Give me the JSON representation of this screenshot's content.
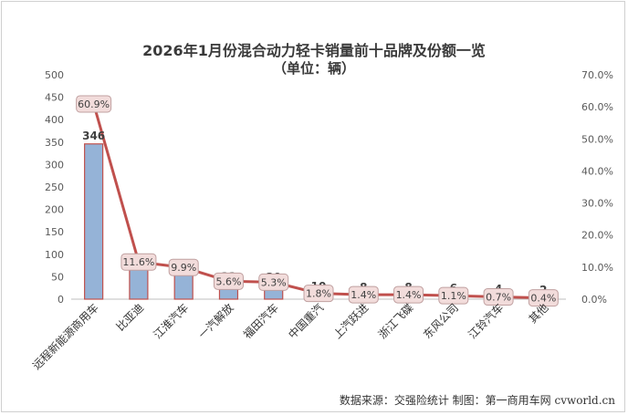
{
  "chart_data": {
    "type": "bar",
    "title": "2026年1月份混合动力轻卡销量前十品牌及份额一览",
    "subtitle": "（单位：辆）",
    "categories": [
      "远程新能源商用车",
      "比亚迪",
      "江淮汽车",
      "一汽解放",
      "福田汽车",
      "中国重汽",
      "上汽跃进",
      "浙江飞碟",
      "东风公司",
      "江铃汽车",
      "其他"
    ],
    "series": [
      {
        "type": "bar",
        "axis": "left",
        "values": [
          346,
          66,
          56,
          32,
          30,
          10,
          8,
          8,
          6,
          4,
          2
        ],
        "color": "#95b3d7",
        "edge": "#c0504d"
      },
      {
        "type": "line",
        "axis": "right",
        "values": [
          0.609,
          0.116,
          0.099,
          0.056,
          0.053,
          0.018,
          0.014,
          0.014,
          0.011,
          0.007,
          0.004
        ],
        "labels": [
          "60.9%",
          "11.6%",
          "9.9%",
          "5.6%",
          "5.3%",
          "1.8%",
          "1.4%",
          "1.4%",
          "1.1%",
          "0.7%",
          "0.4%"
        ],
        "color": "#c0504d"
      }
    ],
    "yticks_left": [
      "0",
      "50",
      "100",
      "150",
      "200",
      "250",
      "300",
      "350",
      "400",
      "450",
      "500"
    ],
    "yticks_right": [
      "0.0%",
      "10.0%",
      "20.0%",
      "30.0%",
      "40.0%",
      "50.0%",
      "60.0%",
      "70.0%"
    ],
    "ylim_left": [
      0,
      500
    ],
    "ylim_right": [
      0,
      0.7
    ],
    "grid": false
  },
  "source": "数据来源：交强险统计  制图：第一商用车网 cvworld.cn"
}
